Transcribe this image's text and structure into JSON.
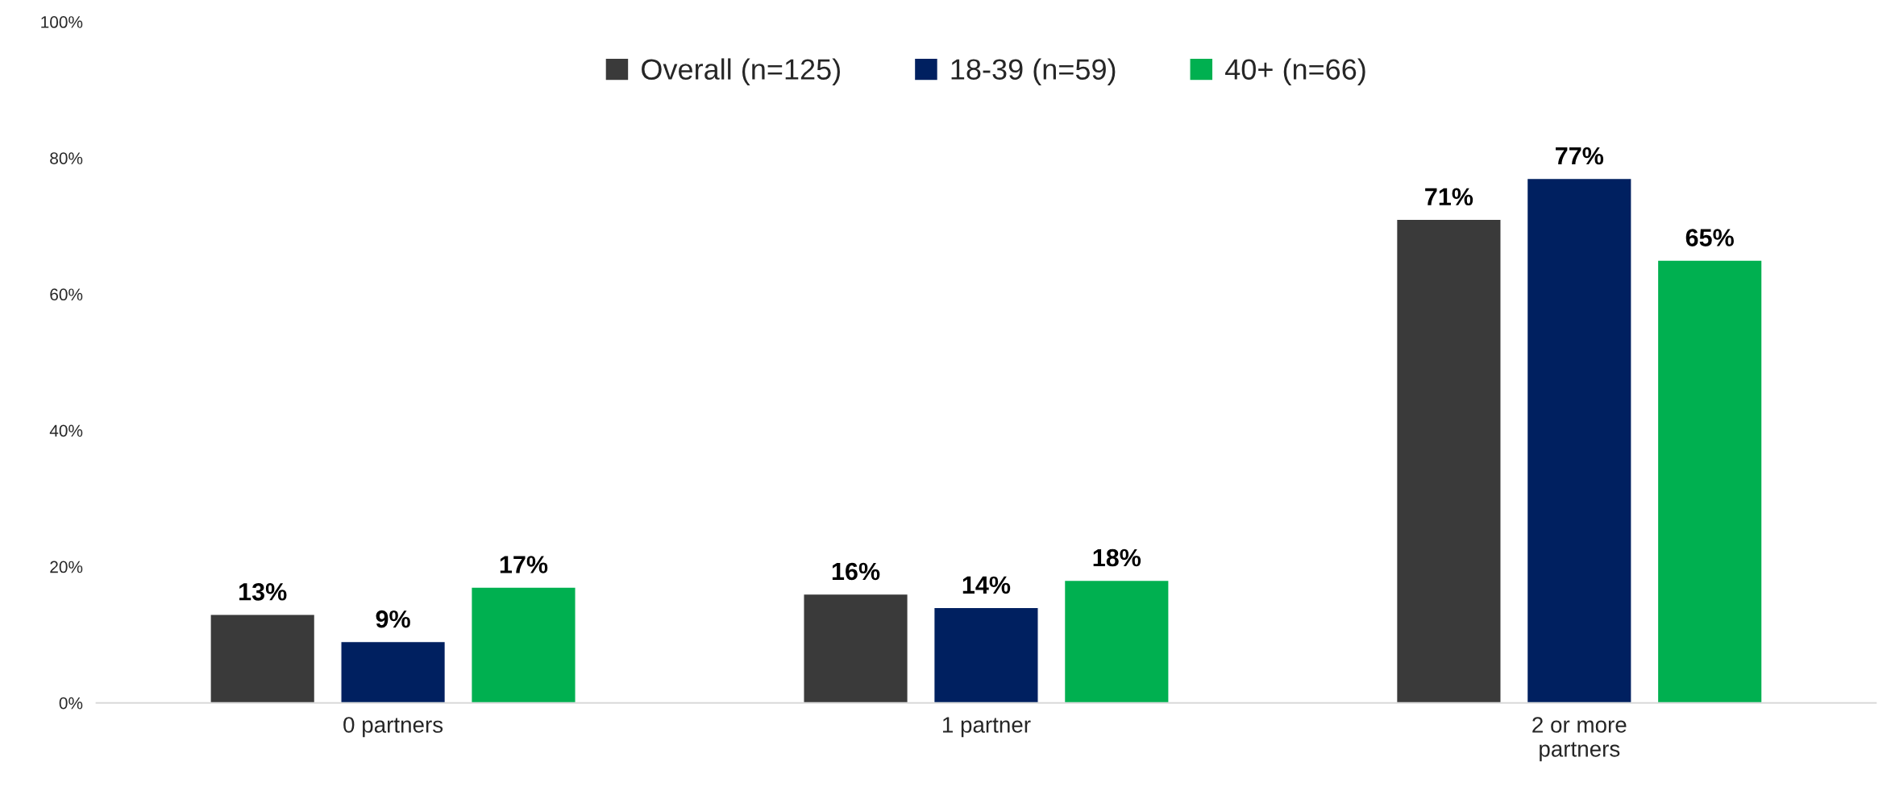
{
  "chart_data": {
    "type": "bar",
    "categories": [
      "0 partners",
      "1 partner",
      "2 or more\npartners"
    ],
    "series": [
      {
        "name": "Overall (n=125)",
        "color": "#3a3a3a",
        "values": [
          13,
          16,
          71
        ],
        "value_labels": [
          "13%",
          "16%",
          "71%"
        ]
      },
      {
        "name": "18-39 (n=59)",
        "color": "#002060",
        "values": [
          9,
          14,
          77
        ],
        "value_labels": [
          "9%",
          "14%",
          "77%"
        ]
      },
      {
        "name": "40+ (n=66)",
        "color": "#00b050",
        "values": [
          17,
          18,
          65
        ],
        "value_labels": [
          "17%",
          "18%",
          "65%"
        ]
      }
    ],
    "ylim": [
      0,
      100
    ],
    "yticks": [
      {
        "value": 0,
        "label": "0%"
      },
      {
        "value": 20,
        "label": "20%"
      },
      {
        "value": 40,
        "label": "40%"
      },
      {
        "value": 60,
        "label": "60%"
      },
      {
        "value": 80,
        "label": "80%"
      },
      {
        "value": 100,
        "label": "100%"
      }
    ],
    "grid": false,
    "legend": "top"
  }
}
